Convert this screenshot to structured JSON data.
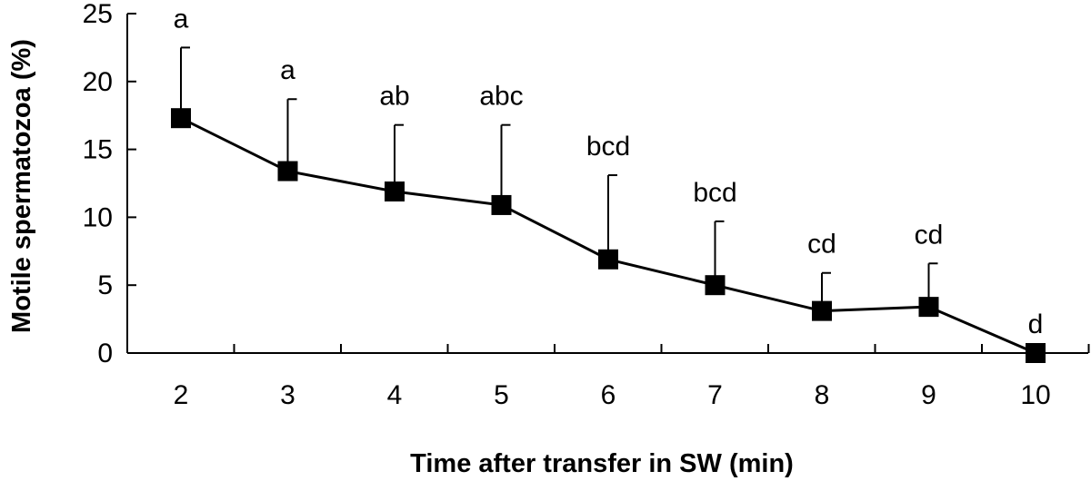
{
  "chart_data": {
    "type": "line",
    "xlabel": "Time after transfer in SW (min)",
    "ylabel": "Motile spermatozoa (%)",
    "categories": [
      "2",
      "3",
      "4",
      "5",
      "6",
      "7",
      "8",
      "9",
      "10"
    ],
    "ylim": [
      0,
      25
    ],
    "yticks": [
      0,
      5,
      10,
      15,
      20,
      25
    ],
    "grid": false,
    "series": [
      {
        "values": [
          17.3,
          13.4,
          11.9,
          10.9,
          6.9,
          5.0,
          3.1,
          3.4,
          0.0
        ],
        "error_upper": [
          22.5,
          18.7,
          16.8,
          16.8,
          13.1,
          9.7,
          5.9,
          6.6,
          0.0
        ],
        "significance": [
          "a",
          "a",
          "ab",
          "abc",
          "bcd",
          "bcd",
          "cd",
          "cd",
          "d"
        ]
      }
    ],
    "colors": {
      "line": "#000000",
      "marker": "#000000"
    }
  }
}
